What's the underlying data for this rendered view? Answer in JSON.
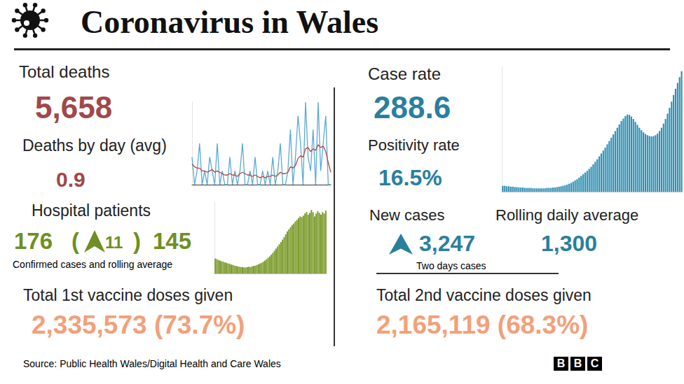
{
  "header": {
    "title": "Coronavirus in Wales"
  },
  "panels": {
    "deaths": {
      "label": "Total deaths",
      "value": "5,658",
      "daily_label": "Deaths by day (avg)",
      "daily_value": "0.9"
    },
    "hospital": {
      "label": "Hospital patients",
      "value": "176",
      "change_open": "(",
      "change": "11",
      "change_close": ")",
      "rolling": "145",
      "note": "Confirmed cases and rolling average"
    },
    "vaccine_1": {
      "label": "Total 1st vaccine doses given",
      "value": "2,335,573 (73.7%)"
    },
    "cases": {
      "label": "Case rate",
      "value": "288.6",
      "positivity_label": "Positivity rate",
      "positivity_value": "16.5%",
      "new_label": "New cases",
      "new_value": "3,247",
      "new_note": "Two days cases",
      "rolling_label": "Rolling daily average",
      "rolling_value": "1,300"
    },
    "vaccine_2": {
      "label": "Total 2nd vaccine doses given",
      "value": "2,165,119 (68.3%)"
    }
  },
  "source": "Source: Public Health Wales/Digital Health and Care Wales",
  "logo": "BBC",
  "chart_data": [
    {
      "type": "line",
      "series": [
        {
          "color": "#5aa9d6",
          "values": [
            2,
            0,
            1,
            3,
            0,
            1,
            0,
            2,
            1,
            0,
            3,
            0,
            1,
            0,
            0,
            2,
            0,
            1,
            0,
            1,
            3,
            0,
            0,
            1,
            0,
            2,
            0,
            0,
            1,
            0,
            1,
            0,
            2,
            0,
            1,
            3,
            0,
            0,
            1,
            4,
            0,
            2,
            5,
            3,
            0,
            6,
            2,
            1,
            4,
            0,
            6,
            1,
            3,
            5,
            0,
            0
          ]
        },
        {
          "color": "#b5473a",
          "values": [
            1.5,
            1.3,
            1.2,
            1.2,
            1.0,
            1.0,
            0.9,
            1.0,
            1.1,
            0.9,
            1.0,
            0.9,
            0.8,
            0.7,
            0.7,
            0.8,
            0.7,
            0.7,
            0.6,
            0.8,
            0.9,
            0.8,
            0.7,
            0.7,
            0.6,
            0.7,
            0.6,
            0.5,
            0.6,
            0.5,
            0.6,
            0.6,
            0.7,
            0.6,
            0.7,
            0.9,
            0.8,
            0.8,
            0.9,
            1.3,
            1.2,
            1.4,
            1.9,
            2.1,
            2.0,
            2.6,
            2.7,
            2.4,
            2.6,
            2.5,
            2.9,
            2.7,
            2.8,
            2.4,
            1.6,
            0.9
          ]
        }
      ],
      "ylim": [
        0,
        6
      ],
      "grid": false,
      "tick_labels": false
    },
    {
      "type": "bar",
      "values": [
        42,
        40,
        38,
        36,
        34,
        33,
        31,
        30,
        28,
        27,
        25,
        24,
        22,
        21,
        20,
        19,
        18,
        18,
        17,
        17,
        18,
        19,
        18,
        20,
        21,
        22,
        24,
        26,
        28,
        30,
        33,
        36,
        40,
        44,
        48,
        53,
        58,
        64,
        70,
        76,
        82,
        88,
        95,
        102,
        110,
        118,
        124,
        130,
        136,
        140,
        146,
        150,
        155,
        160,
        158,
        162,
        168,
        172,
        165,
        170,
        178,
        172,
        160,
        168,
        175,
        170,
        165,
        172,
        168,
        176
      ],
      "color": "#7b9b2b",
      "ylim": [
        0,
        200
      ],
      "grid": false,
      "tick_labels": false
    },
    {
      "type": "bar",
      "values": [
        14,
        14,
        13,
        13,
        12,
        12,
        11,
        11,
        10,
        10,
        10,
        9,
        9,
        9,
        9,
        8,
        8,
        8,
        8,
        8,
        8,
        8,
        9,
        9,
        9,
        10,
        10,
        11,
        12,
        13,
        14,
        15,
        17,
        19,
        21,
        24,
        27,
        30,
        34,
        38,
        42,
        46,
        50,
        55,
        60,
        66,
        72,
        78,
        85,
        92,
        99,
        106,
        114,
        122,
        130,
        138,
        146,
        154,
        162,
        170,
        176,
        182,
        186,
        185,
        181,
        175,
        168,
        161,
        154,
        148,
        143,
        139,
        136,
        134,
        133,
        134,
        136,
        140,
        146,
        154,
        164,
        175,
        188,
        202,
        217,
        233,
        248,
        262,
        276,
        290
      ],
      "color": "#2e8fb3",
      "ylim": [
        0,
        300
      ],
      "grid": false,
      "tick_labels": false
    }
  ]
}
